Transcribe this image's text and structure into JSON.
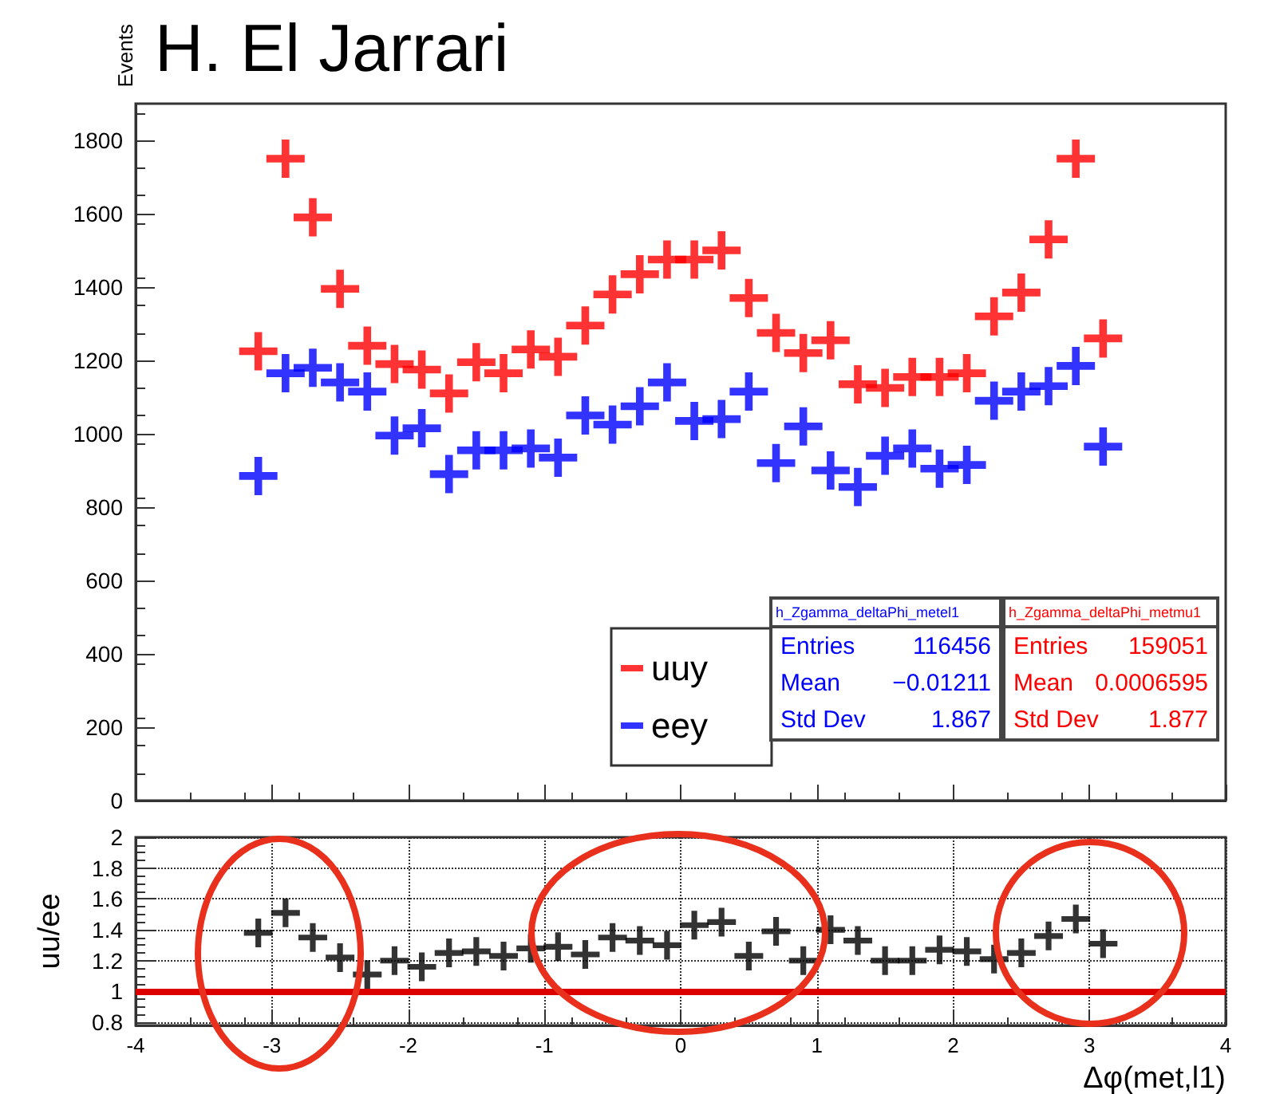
{
  "chart_data": [
    {
      "type": "scatter",
      "title": "H. El Jarrari",
      "ylabel": "Events",
      "xlim": [
        -4,
        4
      ],
      "xticks": [
        -4,
        -3,
        -2,
        -1,
        0,
        1,
        2,
        3,
        4
      ],
      "ylim": [
        0,
        1900
      ],
      "yticks": [
        0,
        200,
        400,
        600,
        800,
        1000,
        1200,
        1400,
        1600,
        1800
      ],
      "tick_labels": "y",
      "marker": "cross",
      "legend": "bottom",
      "grid": false,
      "x": [
        -3.1,
        -2.9,
        -2.7,
        -2.5,
        -2.3,
        -2.1,
        -1.9,
        -1.7,
        -1.5,
        -1.3,
        -1.1,
        -0.9,
        -0.7,
        -0.5,
        -0.3,
        -0.1,
        0.1,
        0.3,
        0.5,
        0.7,
        0.9,
        1.1,
        1.3,
        1.5,
        1.7,
        1.9,
        2.1,
        2.3,
        2.5,
        2.7,
        2.9,
        3.1
      ],
      "series": [
        {
          "name": "uuy",
          "color": "#ff0000",
          "values": [
            1225,
            1750,
            1590,
            1395,
            1240,
            1190,
            1175,
            1110,
            1195,
            1165,
            1230,
            1210,
            1295,
            1380,
            1435,
            1475,
            1475,
            1500,
            1370,
            1275,
            1220,
            1255,
            1135,
            1125,
            1155,
            1155,
            1165,
            1320,
            1385,
            1530,
            1750,
            1260
          ]
        },
        {
          "name": "eey",
          "color": "#0000ff",
          "values": [
            885,
            1165,
            1180,
            1140,
            1115,
            995,
            1015,
            890,
            955,
            955,
            960,
            935,
            1050,
            1025,
            1075,
            1140,
            1035,
            1040,
            1115,
            920,
            1020,
            900,
            855,
            940,
            960,
            905,
            915,
            1090,
            1115,
            1130,
            1185,
            965
          ]
        }
      ],
      "annotations": [
        "h_Zgamma_deltaPhi_metel1",
        "Entries",
        "116456",
        "Mean",
        "−0.01211",
        "Std Dev",
        "1.867",
        "h_Zgamma_deltaPhi_metmu1",
        "Entries",
        "159051",
        "Mean",
        "0.0006595",
        "Std Dev",
        "1.877"
      ]
    },
    {
      "type": "scatter",
      "ylabel": "uu/ee",
      "xlabel": "Δφ(met,l1)",
      "xlim": [
        -4,
        4
      ],
      "xticks": [
        -4,
        -3,
        -2,
        -1,
        0,
        1,
        2,
        3,
        4
      ],
      "ylim": [
        0.78,
        2
      ],
      "yticks": [
        0.8,
        1,
        1.2,
        1.4,
        1.6,
        1.8,
        2
      ],
      "marker": "cross",
      "grid": true,
      "x": [
        -3.1,
        -2.9,
        -2.7,
        -2.5,
        -2.3,
        -2.1,
        -1.9,
        -1.7,
        -1.5,
        -1.3,
        -1.1,
        -0.9,
        -0.7,
        -0.5,
        -0.3,
        -0.1,
        0.1,
        0.3,
        0.5,
        0.7,
        0.9,
        1.1,
        1.3,
        1.5,
        1.7,
        1.9,
        2.1,
        2.3,
        2.5,
        2.7,
        2.9,
        3.1
      ],
      "series": [
        {
          "color": "#000000",
          "values": [
            1.38,
            1.51,
            1.35,
            1.22,
            1.11,
            1.2,
            1.16,
            1.25,
            1.26,
            1.23,
            1.28,
            1.29,
            1.24,
            1.35,
            1.33,
            1.3,
            1.43,
            1.45,
            1.23,
            1.39,
            1.2,
            1.4,
            1.33,
            1.2,
            1.2,
            1.27,
            1.26,
            1.21,
            1.25,
            1.36,
            1.47,
            1.31
          ]
        }
      ],
      "ref_lines": [
        {
          "axis": "y",
          "value": 1,
          "color": "#dd0000"
        }
      ]
    }
  ]
}
